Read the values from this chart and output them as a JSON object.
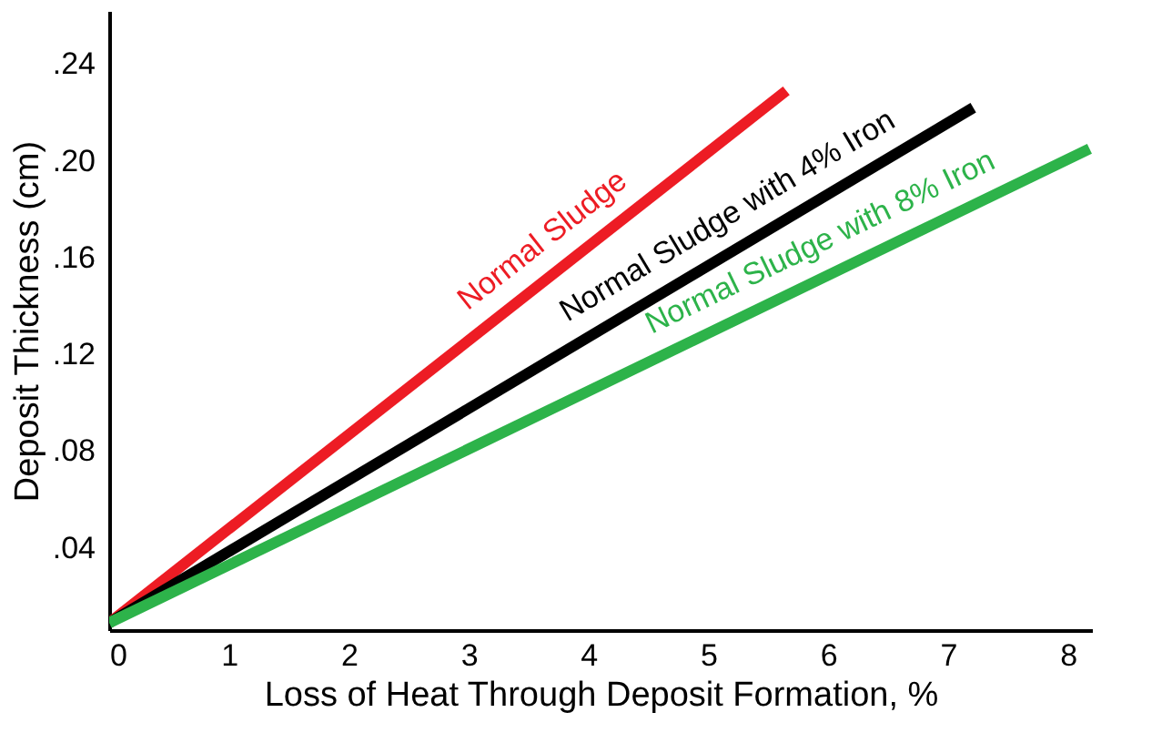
{
  "chart_data": {
    "type": "line",
    "xlabel": "Loss of Heat Through Deposit Formation, %",
    "ylabel": "Deposit Thickness (cm)",
    "xlim": [
      0,
      8.2
    ],
    "xticks": [
      0,
      1,
      2,
      3,
      4,
      5,
      6,
      7,
      8
    ],
    "ylim": [
      0.006,
      0.262
    ],
    "yticks": [
      {
        "value": 0.04,
        "label": ".04"
      },
      {
        "value": 0.08,
        "label": ".08"
      },
      {
        "value": 0.12,
        "label": ".12"
      },
      {
        "value": 0.16,
        "label": ".16"
      },
      {
        "value": 0.2,
        "label": ".20"
      },
      {
        "value": 0.24,
        "label": ".24"
      }
    ],
    "grid": false,
    "marker": "none",
    "line_style": "solid",
    "series": [
      {
        "name": "Normal Sludge",
        "color": "#ed1c24",
        "x": [
          0,
          5.65
        ],
        "values": [
          0.009,
          0.229
        ]
      },
      {
        "name": "Normal Sludge with 4% Iron",
        "color": "#000000",
        "x": [
          0,
          7.21
        ],
        "values": [
          0.009,
          0.222
        ]
      },
      {
        "name": "Normal Sludge with 8% Iron",
        "color": "#2db34a",
        "x": [
          0,
          8.18
        ],
        "values": [
          0.009,
          0.205
        ]
      }
    ]
  }
}
